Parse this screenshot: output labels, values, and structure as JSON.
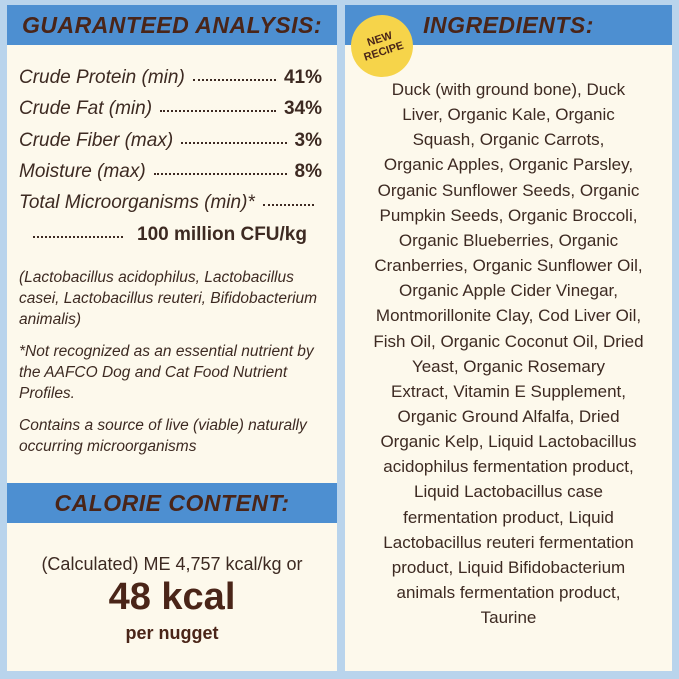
{
  "analysis_panel": {
    "header": "GUARANTEED ANALYSIS:",
    "rows": [
      {
        "label": "Crude Protein (min)",
        "value": "41%"
      },
      {
        "label": "Crude Fat (min)",
        "value": "34%"
      },
      {
        "label": "Crude Fiber (max)",
        "value": "3%"
      },
      {
        "label": "Moisture (max)",
        "value": "8%"
      }
    ],
    "microorganisms": {
      "label": "Total Microorganisms (min)*",
      "value": "100 million CFU/kg"
    },
    "notes": [
      [
        "(Lactobacillus acidophilus, Lactobacillus",
        "casei, Lactobacillus reuteri, Bifidobacterium",
        "animalis)"
      ],
      [
        "*Not recognized as an essential nutrient by",
        "the AAFCO Dog and Cat Food Nutrient",
        "Profiles."
      ],
      [
        "Contains a source of live (viable) naturally",
        "occurring microorganisms"
      ]
    ]
  },
  "calorie_panel": {
    "header": "CALORIE CONTENT:",
    "calculated": "(Calculated) ME 4,757 kcal/kg or",
    "amount": "48 kcal",
    "unit": "per nugget"
  },
  "ingredients_panel": {
    "header": "INGREDIENTS:",
    "badge": [
      "NEW",
      "RECIPE"
    ],
    "lines": [
      "Duck (with ground bone), Duck",
      "Liver, Organic Kale, Organic",
      "Squash, Organic Carrots,",
      "Organic Apples, Organic Parsley,",
      "Organic Sunflower Seeds, Organic",
      "Pumpkin Seeds, Organic Broccoli,",
      "Organic Blueberries, Organic",
      "Cranberries, Organic Sunflower Oil,",
      "Organic Apple Cider Vinegar,",
      "Montmorillonite Clay, Cod Liver Oil,",
      "Fish Oil, Organic Coconut Oil, Dried",
      "Yeast, Organic Rosemary",
      "Extract, Vitamin E Supplement,",
      "Organic Ground Alfalfa, Dried",
      "Organic Kelp, Liquid Lactobacillus",
      "acidophilus fermentation product,",
      "Liquid Lactobacillus case",
      "fermentation product, Liquid",
      "Lactobacillus reuteri fermentation",
      "product, Liquid Bifidobacterium",
      "animals fermentation product,",
      "Taurine"
    ]
  }
}
